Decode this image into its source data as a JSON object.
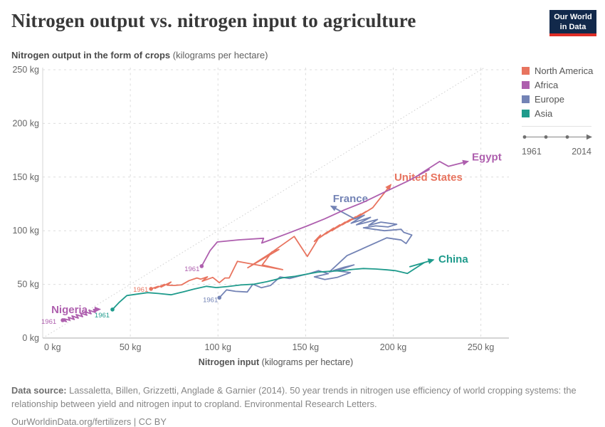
{
  "header": {
    "title": "Nitrogen output vs. nitrogen input to agriculture",
    "logo": {
      "line1": "Our World",
      "line2": "in Data",
      "bg": "#12294B",
      "accent": "#DE2D26"
    }
  },
  "subtitle": {
    "bold": "Nitrogen output in the form of crops",
    "rest": " (kilograms per hectare)"
  },
  "legend": {
    "items": [
      {
        "label": "North America",
        "color": "#E8745F"
      },
      {
        "label": "Africa",
        "color": "#AE5FAE"
      },
      {
        "label": "Europe",
        "color": "#7383B5"
      },
      {
        "label": "Asia",
        "color": "#1F9B8C"
      }
    ],
    "timeline": {
      "start": "1961",
      "end": "2014"
    }
  },
  "footer": {
    "source_label": "Data source:",
    "source_text": " Lassaletta, Billen, Grizzetti, Anglade & Garnier (2014). 50 year trends in nitrogen use efficiency of world cropping systems: the relationship between yield and nitrogen input to cropland. Environmental Research Letters.",
    "link": "OurWorldinData.org/fertilizers",
    "separator": " | ",
    "license": "CC BY"
  },
  "chart_data": {
    "type": "line",
    "subtype": "connected-scatter",
    "title": "Nitrogen output vs. nitrogen input to agriculture",
    "xlabel_bold": "Nitrogen input",
    "xlabel_rest": " (kilograms per hectare)",
    "ylabel": "Nitrogen output in the form of crops (kilograms per hectare)",
    "xlim": [
      0,
      266
    ],
    "ylim": [
      0,
      252
    ],
    "grid": true,
    "legend_position": "right",
    "time_range": [
      "1961",
      "2014"
    ],
    "diagonal": {
      "from": [
        0,
        0
      ],
      "to": [
        252,
        252
      ]
    },
    "x_ticks": [
      {
        "v": 0,
        "label": "0 kg"
      },
      {
        "v": 50,
        "label": "50 kg"
      },
      {
        "v": 100,
        "label": "100 kg"
      },
      {
        "v": 150,
        "label": "150 kg"
      },
      {
        "v": 200,
        "label": "200 kg"
      },
      {
        "v": 250,
        "label": "250 kg"
      }
    ],
    "y_ticks": [
      {
        "v": 0,
        "label": "0 kg"
      },
      {
        "v": 50,
        "label": "50 kg"
      },
      {
        "v": 100,
        "label": "100 kg"
      },
      {
        "v": 150,
        "label": "150 kg"
      },
      {
        "v": 200,
        "label": "200 kg"
      },
      {
        "v": 250,
        "label": "250 kg"
      }
    ],
    "series": [
      {
        "name": "United States",
        "continent": "North America",
        "color": "#E8745F",
        "name_label": {
          "text": "United States",
          "x": 200.6,
          "y": 146.7,
          "anchor": "start"
        },
        "start_label": {
          "text": "1961",
          "x": 60.2,
          "y": 43.2,
          "anchor": "end"
        },
        "points": [
          [
            61.8,
            45.8
          ],
          [
            65.9,
            48.2
          ],
          [
            64,
            46.2
          ],
          [
            69.5,
            50
          ],
          [
            67.5,
            47.5
          ],
          [
            73.2,
            52.2
          ],
          [
            71,
            49.3
          ],
          [
            75,
            49
          ],
          [
            79.3,
            49.6
          ],
          [
            83.5,
            53.5
          ],
          [
            88,
            56
          ],
          [
            90.2,
            54.9
          ],
          [
            94,
            57
          ],
          [
            91,
            53
          ],
          [
            97,
            56.5
          ],
          [
            100.8,
            51.6
          ],
          [
            104,
            56
          ],
          [
            106.4,
            56
          ],
          [
            111.1,
            71.5
          ],
          [
            136.9,
            63.7
          ],
          [
            125.3,
            68.2
          ],
          [
            130.8,
            80.3
          ],
          [
            134.8,
            82.5
          ],
          [
            127,
            75
          ],
          [
            117,
            65.5
          ],
          [
            129,
            78
          ],
          [
            143.5,
            94.7
          ],
          [
            151,
            76
          ],
          [
            158.5,
            96
          ],
          [
            155,
            90
          ],
          [
            162.5,
            99
          ],
          [
            158,
            93.5
          ],
          [
            166,
            102.5
          ],
          [
            161.5,
            97
          ],
          [
            169.5,
            105.5
          ],
          [
            165,
            100
          ],
          [
            172.5,
            108
          ],
          [
            168,
            103
          ],
          [
            175.5,
            110.5
          ],
          [
            171,
            105.5
          ],
          [
            178.5,
            113
          ],
          [
            174,
            108
          ],
          [
            181.5,
            115.5
          ],
          [
            177,
            110.5
          ],
          [
            184.5,
            118
          ],
          [
            180,
            113
          ],
          [
            188.3,
            121.5
          ],
          [
            198.5,
            142.7
          ]
        ]
      },
      {
        "name": "France",
        "continent": "Europe",
        "color": "#7383B5",
        "name_label": {
          "text": "France",
          "x": 165.6,
          "y": 126.8,
          "anchor": "start"
        },
        "start_label": {
          "text": "1961",
          "x": 100,
          "y": 33.5,
          "anchor": "end"
        },
        "points": [
          [
            100.8,
            37.6
          ],
          [
            104.9,
            44.9
          ],
          [
            110,
            43.5
          ],
          [
            116.7,
            42.9
          ],
          [
            119.9,
            50.2
          ],
          [
            124.8,
            46.9
          ],
          [
            130,
            49
          ],
          [
            135.4,
            56.9
          ],
          [
            141,
            55.5
          ],
          [
            147.2,
            58.2
          ],
          [
            152,
            60
          ],
          [
            157.3,
            62.8
          ],
          [
            163,
            60
          ],
          [
            155,
            57
          ],
          [
            161,
            54.5
          ],
          [
            168,
            56.5
          ],
          [
            175.5,
            61
          ],
          [
            166,
            63
          ],
          [
            172,
            66
          ],
          [
            177.6,
            68.2
          ],
          [
            170,
            64
          ],
          [
            163.5,
            61.5
          ],
          [
            173.6,
            76.8
          ],
          [
            196.3,
            93.4
          ],
          [
            204.5,
            91.4
          ],
          [
            207.3,
            88.1
          ],
          [
            210.6,
            96
          ],
          [
            206,
            98.5
          ],
          [
            204.5,
            101.3
          ],
          [
            195,
            100
          ],
          [
            183,
            102.7
          ],
          [
            190,
            104.5
          ],
          [
            197,
            103.5
          ],
          [
            202,
            106
          ],
          [
            193,
            108
          ],
          [
            186,
            105
          ],
          [
            191,
            110.5
          ],
          [
            184,
            107.5
          ],
          [
            179,
            105.5
          ],
          [
            187,
            112.5
          ],
          [
            181,
            109.5
          ],
          [
            176,
            107
          ],
          [
            183.5,
            114.5
          ],
          [
            178,
            111
          ],
          [
            164.7,
            122.8
          ]
        ]
      },
      {
        "name": "Egypt",
        "continent": "Africa",
        "color": "#AE5FAE",
        "name_label": {
          "text": "Egypt",
          "x": 244.9,
          "y": 165.3,
          "anchor": "start"
        },
        "start_label": {
          "text": "1961",
          "x": 89.5,
          "y": 62.4,
          "anchor": "end"
        },
        "points": [
          [
            90.7,
            67
          ],
          [
            95.5,
            81.5
          ],
          [
            99.6,
            89.5
          ],
          [
            112,
            91.5
          ],
          [
            126,
            93
          ],
          [
            125,
            88.5
          ],
          [
            139,
            97
          ],
          [
            151,
            104.5
          ],
          [
            160.8,
            111
          ],
          [
            171.5,
            119
          ],
          [
            183,
            126.5
          ],
          [
            195,
            136
          ],
          [
            208,
            146
          ],
          [
            220.5,
            157
          ],
          [
            214.5,
            152
          ],
          [
            226.5,
            164.5
          ],
          [
            231.5,
            160
          ],
          [
            242.5,
            164.5
          ]
        ]
      },
      {
        "name": "Nigeria",
        "continent": "Africa",
        "color": "#AE5FAE",
        "name_label": {
          "text": "Nigeria",
          "x": 4.9,
          "y": 23.2,
          "anchor": "start"
        },
        "start_label": {
          "text": "1961",
          "x": -0.8,
          "y": 13.3,
          "anchor": "start"
        },
        "points": [
          [
            11.4,
            16.6
          ],
          [
            13.5,
            15.3
          ],
          [
            12.2,
            17.9
          ],
          [
            15.5,
            16.6
          ],
          [
            14.6,
            19.3
          ],
          [
            18,
            17.3
          ],
          [
            16.7,
            20.6
          ],
          [
            20.3,
            18.6
          ],
          [
            19.1,
            21.9
          ],
          [
            22.8,
            19.9
          ],
          [
            21.5,
            23.3
          ],
          [
            25.2,
            21.3
          ],
          [
            24,
            24.6
          ],
          [
            27.6,
            22.6
          ],
          [
            26.4,
            25.9
          ],
          [
            30,
            23.9
          ],
          [
            29,
            26.6
          ],
          [
            32.5,
            26.8
          ]
        ]
      },
      {
        "name": "China",
        "continent": "Asia",
        "color": "#1F9B8C",
        "name_label": {
          "text": "China",
          "x": 225.8,
          "y": 70.4,
          "anchor": "start"
        },
        "start_label": {
          "text": "1961",
          "x": 38.2,
          "y": 19.3,
          "anchor": "end"
        },
        "points": [
          [
            39.8,
            26.6
          ],
          [
            43.5,
            33
          ],
          [
            48,
            39.6
          ],
          [
            54,
            41
          ],
          [
            59.8,
            42.3
          ],
          [
            66,
            41.5
          ],
          [
            73.2,
            40.3
          ],
          [
            80,
            43
          ],
          [
            86.2,
            45.6
          ],
          [
            93.5,
            48.2
          ],
          [
            99,
            47
          ],
          [
            105.5,
            48
          ],
          [
            113,
            49.5
          ],
          [
            120.7,
            50.2
          ],
          [
            128,
            52.5
          ],
          [
            137,
            56.2
          ],
          [
            144,
            57.5
          ],
          [
            150.5,
            59.5
          ],
          [
            157.3,
            61.5
          ],
          [
            164,
            62.3
          ],
          [
            170.7,
            62.8
          ],
          [
            177,
            64
          ],
          [
            182.9,
            64.8
          ],
          [
            190,
            64.3
          ],
          [
            196.5,
            63.5
          ],
          [
            201.2,
            62.8
          ],
          [
            208.1,
            60.2
          ],
          [
            217.5,
            70.1
          ],
          [
            209.5,
            66.5
          ],
          [
            222.8,
            72.8
          ]
        ]
      }
    ]
  }
}
